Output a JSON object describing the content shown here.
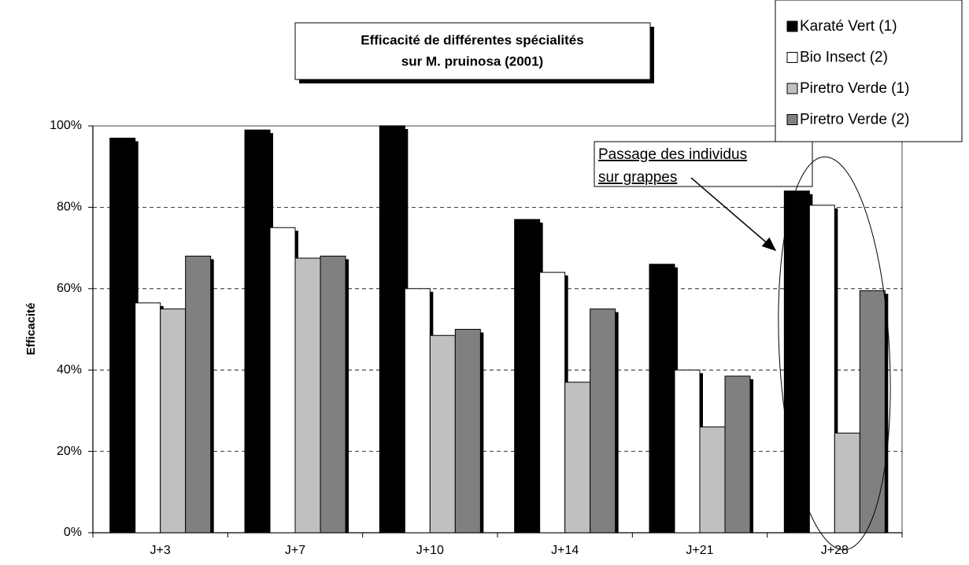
{
  "chart_data": {
    "type": "bar",
    "title": [
      "Efficacité de différentes spécialités",
      "sur M. pruinosa (2001)"
    ],
    "y_label": "Efficacité",
    "annotation": [
      "Passage des individus",
      "sur grappes"
    ],
    "categories": [
      "J+3",
      "J+7",
      "J+10",
      "J+14",
      "J+21",
      "J+28"
    ],
    "series": [
      {
        "name": "Karaté Vert (1)",
        "color": "#000000",
        "values": [
          97,
          99,
          100,
          77,
          66,
          84
        ]
      },
      {
        "name": "Bio Insect (2)",
        "color": "#ffffff",
        "values": [
          56.5,
          75,
          60,
          64,
          40,
          80.5
        ]
      },
      {
        "name": "Piretro Verde (1)",
        "color": "#c0c0c0",
        "values": [
          55,
          67.5,
          48.5,
          37,
          26,
          24.5
        ]
      },
      {
        "name": "Piretro Verde (2)",
        "color": "#808080",
        "values": [
          68,
          68,
          50,
          55,
          38.5,
          59.5
        ]
      }
    ],
    "ylim": [
      0,
      100
    ],
    "yticks": [
      {
        "value": 0,
        "label": "0%"
      },
      {
        "value": 20,
        "label": "20%"
      },
      {
        "value": 40,
        "label": "40%"
      },
      {
        "value": 60,
        "label": "60%"
      },
      {
        "value": 80,
        "label": "80%"
      },
      {
        "value": 100,
        "label": "100%"
      }
    ],
    "grid": true,
    "legend": "top-right"
  }
}
